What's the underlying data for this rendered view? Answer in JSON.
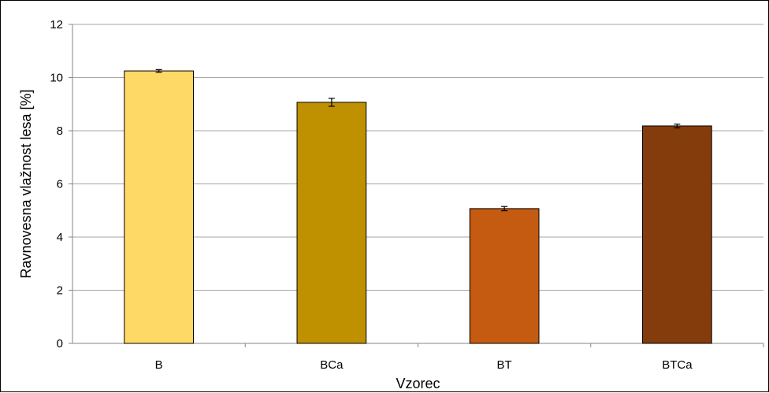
{
  "chart_data": {
    "type": "bar",
    "title": "",
    "xlabel": "Vzorec",
    "ylabel": "Ravnovesna vlažnost lesa [%]",
    "categories": [
      "B",
      "BCa",
      "BT",
      "BTCa"
    ],
    "values": [
      10.25,
      9.07,
      5.07,
      8.18
    ],
    "error": [
      0.05,
      0.15,
      0.08,
      0.07
    ],
    "colors": [
      "#FFD966",
      "#BF9000",
      "#C55A11",
      "#843C0C"
    ],
    "ylim": [
      0,
      12
    ],
    "yticks": [
      "0",
      "2",
      "4",
      "6",
      "8",
      "10",
      "12"
    ],
    "grid": true,
    "legend": "none"
  }
}
